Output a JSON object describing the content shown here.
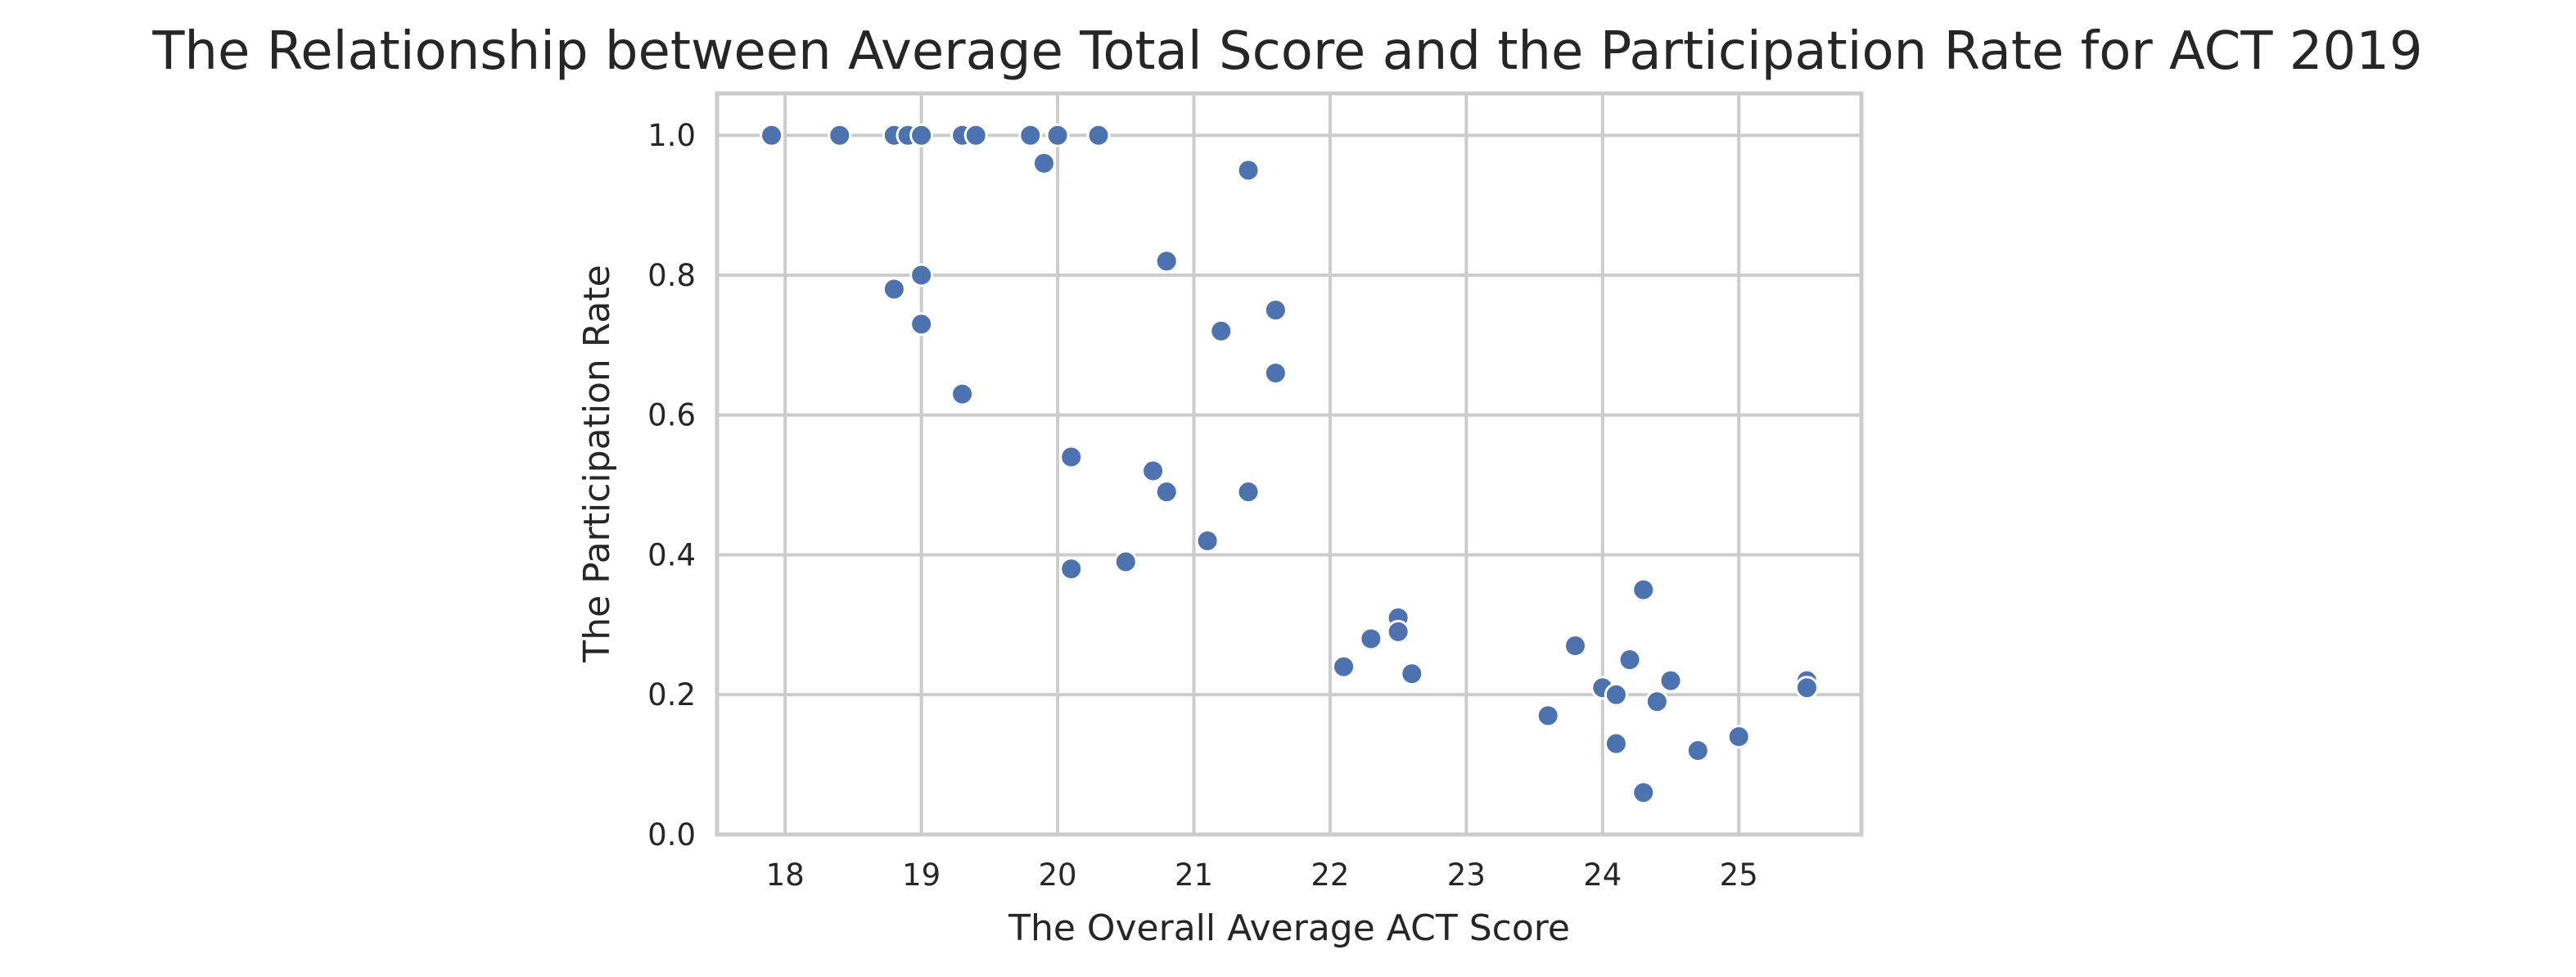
{
  "chart_data": {
    "type": "scatter",
    "title": "The Relationship between Average Total Score and the Participation Rate for ACT 2019",
    "xlabel": "The Overall Average ACT Score",
    "ylabel": "The Participation Rate",
    "xlim": [
      17.5,
      25.9
    ],
    "ylim": [
      0.0,
      1.06
    ],
    "xticks": [
      18,
      19,
      20,
      21,
      22,
      23,
      24,
      25
    ],
    "yticks": [
      0.0,
      0.2,
      0.4,
      0.6,
      0.8,
      1.0
    ],
    "xtick_labels": [
      "18",
      "19",
      "20",
      "21",
      "22",
      "23",
      "24",
      "25"
    ],
    "ytick_labels": [
      "0.0",
      "0.2",
      "0.4",
      "0.6",
      "0.8",
      "1.0"
    ],
    "grid": true,
    "point_color": "#4c72b0",
    "points": [
      {
        "x": 17.9,
        "y": 1.0
      },
      {
        "x": 18.4,
        "y": 1.0
      },
      {
        "x": 18.8,
        "y": 1.0
      },
      {
        "x": 18.9,
        "y": 1.0
      },
      {
        "x": 19.0,
        "y": 1.0
      },
      {
        "x": 19.3,
        "y": 1.0
      },
      {
        "x": 19.4,
        "y": 1.0
      },
      {
        "x": 19.8,
        "y": 1.0
      },
      {
        "x": 20.0,
        "y": 1.0
      },
      {
        "x": 20.3,
        "y": 1.0
      },
      {
        "x": 19.9,
        "y": 0.96
      },
      {
        "x": 21.4,
        "y": 0.95
      },
      {
        "x": 20.8,
        "y": 0.82
      },
      {
        "x": 19.0,
        "y": 0.8
      },
      {
        "x": 18.8,
        "y": 0.78
      },
      {
        "x": 21.6,
        "y": 0.75
      },
      {
        "x": 19.0,
        "y": 0.73
      },
      {
        "x": 21.2,
        "y": 0.72
      },
      {
        "x": 21.6,
        "y": 0.66
      },
      {
        "x": 19.3,
        "y": 0.63
      },
      {
        "x": 20.1,
        "y": 0.54
      },
      {
        "x": 20.7,
        "y": 0.52
      },
      {
        "x": 20.8,
        "y": 0.49
      },
      {
        "x": 21.4,
        "y": 0.49
      },
      {
        "x": 21.1,
        "y": 0.42
      },
      {
        "x": 20.5,
        "y": 0.39
      },
      {
        "x": 20.1,
        "y": 0.38
      },
      {
        "x": 24.3,
        "y": 0.35
      },
      {
        "x": 22.5,
        "y": 0.31
      },
      {
        "x": 22.5,
        "y": 0.29
      },
      {
        "x": 22.3,
        "y": 0.28
      },
      {
        "x": 23.8,
        "y": 0.27
      },
      {
        "x": 24.2,
        "y": 0.25
      },
      {
        "x": 22.1,
        "y": 0.24
      },
      {
        "x": 22.6,
        "y": 0.23
      },
      {
        "x": 24.5,
        "y": 0.22
      },
      {
        "x": 25.5,
        "y": 0.22
      },
      {
        "x": 24.0,
        "y": 0.21
      },
      {
        "x": 25.5,
        "y": 0.21
      },
      {
        "x": 24.1,
        "y": 0.2
      },
      {
        "x": 24.4,
        "y": 0.19
      },
      {
        "x": 23.6,
        "y": 0.17
      },
      {
        "x": 25.0,
        "y": 0.14
      },
      {
        "x": 24.1,
        "y": 0.13
      },
      {
        "x": 24.7,
        "y": 0.12
      },
      {
        "x": 24.3,
        "y": 0.06
      }
    ]
  }
}
